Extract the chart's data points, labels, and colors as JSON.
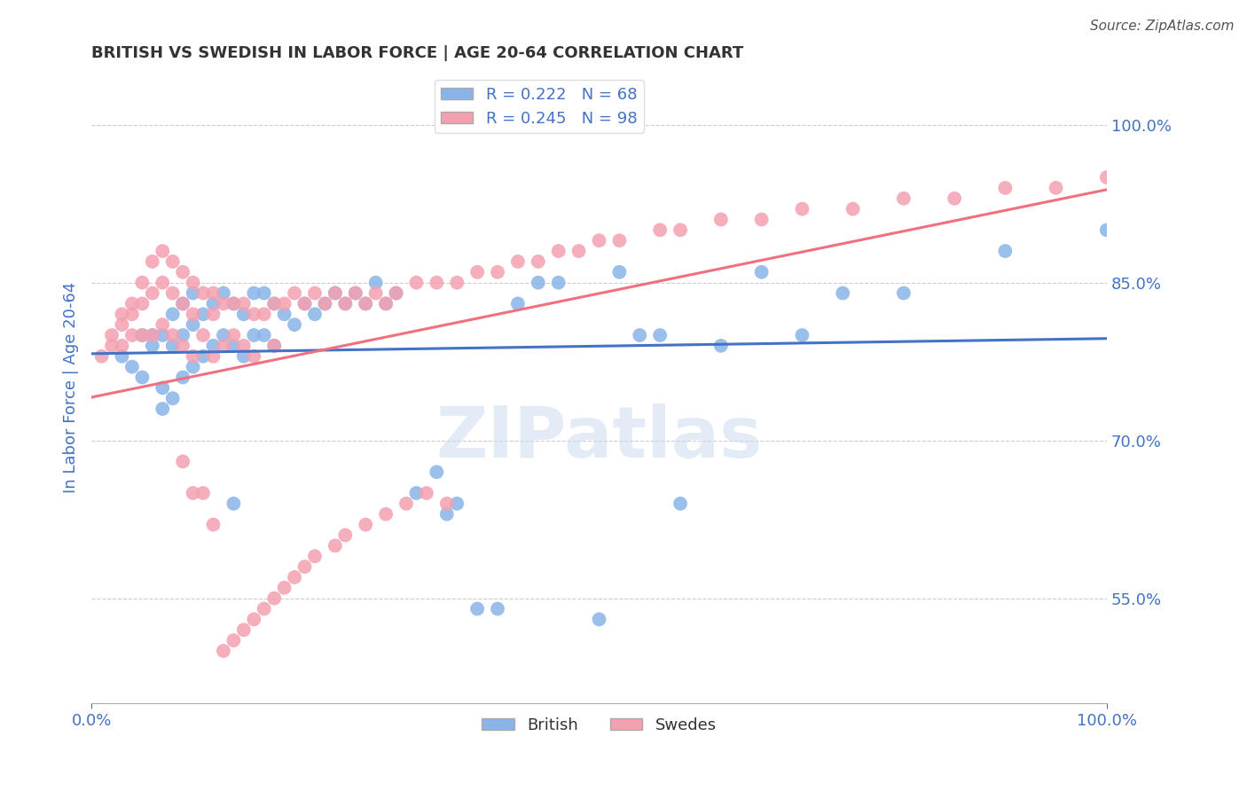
{
  "title": "BRITISH VS SWEDISH IN LABOR FORCE | AGE 20-64 CORRELATION CHART",
  "source_text": "Source: ZipAtlas.com",
  "ylabel": "In Labor Force | Age 20-64",
  "xlim": [
    0.0,
    1.0
  ],
  "ylim": [
    0.45,
    1.05
  ],
  "right_yticks": [
    0.55,
    0.7,
    0.85,
    1.0
  ],
  "right_yticklabels": [
    "55.0%",
    "70.0%",
    "85.0%",
    "100.0%"
  ],
  "legend_british": "British",
  "legend_swedes": "Swedes",
  "R_british": 0.222,
  "N_british": 68,
  "R_swedes": 0.245,
  "N_swedes": 98,
  "british_color": "#8ab4e8",
  "swedes_color": "#f4a0b0",
  "british_line_color": "#4472c4",
  "swedes_line_color": "#f07080",
  "axis_color": "#4472c4",
  "grid_color": "#cccccc",
  "background_color": "#ffffff",
  "british_x": [
    0.03,
    0.04,
    0.05,
    0.05,
    0.06,
    0.06,
    0.07,
    0.07,
    0.07,
    0.08,
    0.08,
    0.08,
    0.09,
    0.09,
    0.09,
    0.1,
    0.1,
    0.1,
    0.11,
    0.11,
    0.12,
    0.12,
    0.13,
    0.13,
    0.14,
    0.14,
    0.14,
    0.15,
    0.15,
    0.16,
    0.16,
    0.17,
    0.17,
    0.18,
    0.18,
    0.19,
    0.2,
    0.21,
    0.22,
    0.23,
    0.24,
    0.25,
    0.26,
    0.27,
    0.28,
    0.29,
    0.3,
    0.32,
    0.34,
    0.35,
    0.36,
    0.38,
    0.4,
    0.42,
    0.44,
    0.46,
    0.5,
    0.52,
    0.54,
    0.56,
    0.58,
    0.62,
    0.66,
    0.7,
    0.74,
    0.8,
    0.9,
    1.0
  ],
  "british_y": [
    0.78,
    0.77,
    0.8,
    0.76,
    0.8,
    0.79,
    0.8,
    0.75,
    0.73,
    0.82,
    0.79,
    0.74,
    0.83,
    0.8,
    0.76,
    0.84,
    0.81,
    0.77,
    0.82,
    0.78,
    0.83,
    0.79,
    0.84,
    0.8,
    0.83,
    0.79,
    0.64,
    0.82,
    0.78,
    0.84,
    0.8,
    0.84,
    0.8,
    0.83,
    0.79,
    0.82,
    0.81,
    0.83,
    0.82,
    0.83,
    0.84,
    0.83,
    0.84,
    0.83,
    0.85,
    0.83,
    0.84,
    0.65,
    0.67,
    0.63,
    0.64,
    0.54,
    0.54,
    0.83,
    0.85,
    0.85,
    0.53,
    0.86,
    0.8,
    0.8,
    0.64,
    0.79,
    0.86,
    0.8,
    0.84,
    0.84,
    0.88,
    0.9
  ],
  "swedes_x": [
    0.01,
    0.02,
    0.02,
    0.03,
    0.03,
    0.03,
    0.04,
    0.04,
    0.04,
    0.05,
    0.05,
    0.05,
    0.06,
    0.06,
    0.06,
    0.07,
    0.07,
    0.07,
    0.08,
    0.08,
    0.08,
    0.09,
    0.09,
    0.09,
    0.1,
    0.1,
    0.1,
    0.11,
    0.11,
    0.12,
    0.12,
    0.12,
    0.13,
    0.13,
    0.14,
    0.14,
    0.15,
    0.15,
    0.16,
    0.16,
    0.17,
    0.18,
    0.18,
    0.19,
    0.2,
    0.21,
    0.22,
    0.23,
    0.24,
    0.25,
    0.26,
    0.27,
    0.28,
    0.29,
    0.3,
    0.32,
    0.34,
    0.36,
    0.38,
    0.4,
    0.42,
    0.44,
    0.46,
    0.48,
    0.5,
    0.52,
    0.56,
    0.58,
    0.62,
    0.66,
    0.7,
    0.75,
    0.8,
    0.85,
    0.9,
    0.95,
    1.0,
    0.35,
    0.33,
    0.31,
    0.29,
    0.27,
    0.25,
    0.24,
    0.22,
    0.21,
    0.2,
    0.19,
    0.18,
    0.17,
    0.16,
    0.15,
    0.14,
    0.13,
    0.12,
    0.11,
    0.1,
    0.09
  ],
  "swedes_y": [
    0.78,
    0.8,
    0.79,
    0.82,
    0.81,
    0.79,
    0.83,
    0.82,
    0.8,
    0.85,
    0.83,
    0.8,
    0.87,
    0.84,
    0.8,
    0.88,
    0.85,
    0.81,
    0.87,
    0.84,
    0.8,
    0.86,
    0.83,
    0.79,
    0.85,
    0.82,
    0.78,
    0.84,
    0.8,
    0.84,
    0.82,
    0.78,
    0.83,
    0.79,
    0.83,
    0.8,
    0.83,
    0.79,
    0.82,
    0.78,
    0.82,
    0.83,
    0.79,
    0.83,
    0.84,
    0.83,
    0.84,
    0.83,
    0.84,
    0.83,
    0.84,
    0.83,
    0.84,
    0.83,
    0.84,
    0.85,
    0.85,
    0.85,
    0.86,
    0.86,
    0.87,
    0.87,
    0.88,
    0.88,
    0.89,
    0.89,
    0.9,
    0.9,
    0.91,
    0.91,
    0.92,
    0.92,
    0.93,
    0.93,
    0.94,
    0.94,
    0.95,
    0.64,
    0.65,
    0.64,
    0.63,
    0.62,
    0.61,
    0.6,
    0.59,
    0.58,
    0.57,
    0.56,
    0.55,
    0.54,
    0.53,
    0.52,
    0.51,
    0.5,
    0.62,
    0.65,
    0.65,
    0.68
  ]
}
